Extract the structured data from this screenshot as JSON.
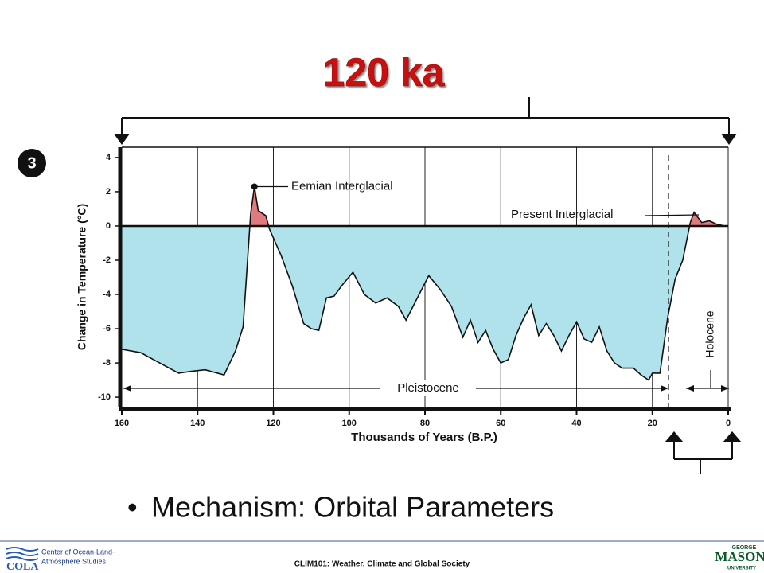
{
  "title": "120 ka",
  "panel_number": "3",
  "chart_data": {
    "type": "area",
    "xlabel": "Thousands of Years (B.P.)",
    "ylabel": "Change in Temperature (°C)",
    "annotations": {
      "eemian": "Eemian Interglacial",
      "present": "Present Interglacial",
      "pleistocene": "Pleistocene",
      "holocene": "Holocene"
    },
    "x": [
      160,
      155,
      150,
      145,
      142,
      138,
      133,
      130,
      128,
      127,
      126,
      125,
      124,
      122,
      121,
      118,
      115,
      112,
      110,
      108,
      106,
      104,
      102,
      99,
      96,
      93,
      90,
      87,
      85,
      82,
      79,
      76,
      73,
      70,
      68,
      66,
      64,
      62,
      60,
      58,
      56,
      54,
      52,
      50,
      48,
      46,
      44,
      42,
      40,
      38,
      36,
      34,
      32,
      30,
      28,
      25,
      23,
      21,
      20,
      18,
      16,
      14,
      12,
      10,
      9,
      7,
      5,
      3,
      1
    ],
    "series": [
      {
        "name": "Temperature change",
        "color": "#111111",
        "above_color": "#e07a7f",
        "below_color": "#b0e2ec",
        "values": [
          -7.2,
          -7.4,
          -8.0,
          -8.6,
          -8.5,
          -8.4,
          -8.7,
          -7.3,
          -5.9,
          -2.6,
          0.7,
          2.3,
          0.9,
          0.6,
          -0.2,
          -1.7,
          -3.5,
          -5.7,
          -6.0,
          -6.1,
          -4.2,
          -4.1,
          -3.5,
          -2.7,
          -4.0,
          -4.5,
          -4.2,
          -4.7,
          -5.5,
          -4.2,
          -2.9,
          -3.7,
          -4.7,
          -6.5,
          -5.5,
          -6.8,
          -6.1,
          -7.2,
          -8.0,
          -7.8,
          -6.4,
          -5.4,
          -4.6,
          -6.4,
          -5.7,
          -6.4,
          -7.3,
          -6.4,
          -5.6,
          -6.6,
          -6.8,
          -5.9,
          -7.3,
          -8.0,
          -8.3,
          -8.3,
          -8.7,
          -9.0,
          -8.6,
          -8.6,
          -5.4,
          -3.1,
          -2.0,
          0.2,
          0.8,
          0.2,
          0.3,
          0.1,
          0
        ]
      }
    ],
    "xlim": [
      160,
      0
    ],
    "xticks": [
      160,
      140,
      120,
      100,
      80,
      60,
      40,
      20,
      0
    ],
    "ylim": [
      -10.6,
      4.6
    ],
    "yticks": [
      4,
      2,
      0,
      -2,
      -4,
      -6,
      -8,
      -10
    ],
    "grid": "x"
  },
  "bullets": [
    "Mechanism: Orbital Parameters"
  ],
  "footer": {
    "org_line1": "Center of Ocean-Land-",
    "org_line2": "Atmosphere Studies",
    "logo_left": "COLA",
    "course": "CLIM101: Weather, Climate and Global Society",
    "logo_right_top": "GEORGE",
    "logo_right": "MASON",
    "logo_right_bottom": "UNIVERSITY"
  }
}
